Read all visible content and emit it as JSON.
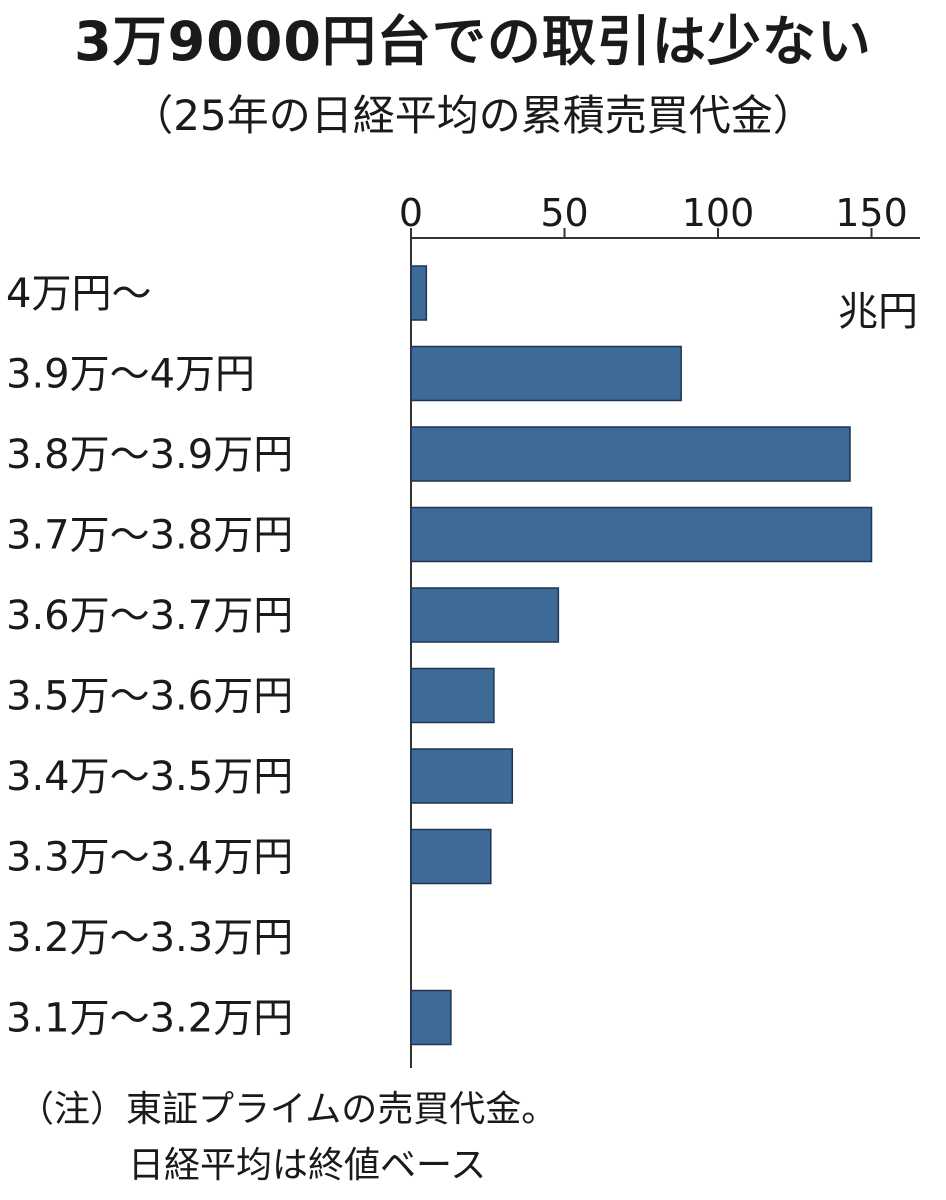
{
  "chart_data": {
    "type": "bar",
    "orientation": "horizontal",
    "title": "3万9000円台での取引は少ない",
    "subtitle": "（25年の日経平均の累積売買代金）",
    "unit": "兆円",
    "categories": [
      "4万円～",
      "3.9万～4万円",
      "3.8万～3.9万円",
      "3.7万～3.8万円",
      "3.6万～3.7万円",
      "3.5万～3.6万円",
      "3.4万～3.5万円",
      "3.3万～3.4万円",
      "3.2万～3.3万円",
      "3.1万～3.2万円"
    ],
    "values": [
      5,
      88,
      143,
      150,
      48,
      27,
      33,
      26,
      0,
      13
    ],
    "xlim": [
      0,
      165
    ],
    "xticks": [
      "0",
      "50",
      "100",
      "150"
    ],
    "xtick_values": [
      0,
      50,
      100,
      150
    ],
    "grid": false,
    "bar_color": "#3e6a97"
  },
  "notes": {
    "line1": "（注）東証プライムの売買代金。",
    "line2": "日経平均は終値ベース"
  }
}
